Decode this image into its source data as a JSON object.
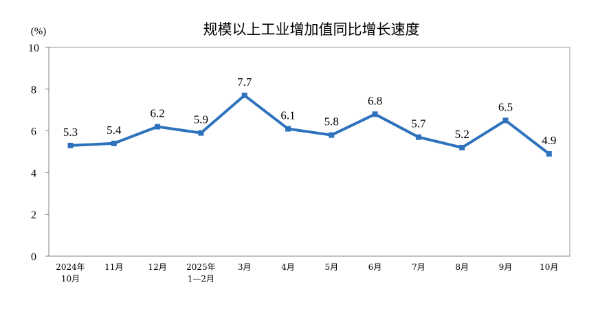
{
  "chart_data": {
    "type": "line",
    "title": "规模以上工业增加值同比增长速度",
    "unit_label": "(%)",
    "categories": [
      [
        "2024年",
        "10月"
      ],
      [
        "11月"
      ],
      [
        "12月"
      ],
      [
        "2025年",
        "1—2月"
      ],
      [
        "3月"
      ],
      [
        "4月"
      ],
      [
        "5月"
      ],
      [
        "6月"
      ],
      [
        "7月"
      ],
      [
        "8月"
      ],
      [
        "9月"
      ],
      [
        "10月"
      ]
    ],
    "values": [
      5.3,
      5.4,
      6.2,
      5.9,
      7.7,
      6.1,
      5.8,
      6.8,
      5.7,
      5.2,
      6.5,
      4.9
    ],
    "data_labels": [
      "5.3",
      "5.4",
      "6.2",
      "5.9",
      "7.7",
      "6.1",
      "5.8",
      "6.8",
      "5.7",
      "5.2",
      "6.5",
      "4.9"
    ],
    "ylim": [
      0,
      10
    ],
    "yticks": [
      0,
      2,
      4,
      6,
      8,
      10
    ],
    "grid": false,
    "legend": "none",
    "colors": {
      "line": "#2E72BD",
      "marker": "#2E72BD",
      "frame": "#999999",
      "axis": "#808080"
    }
  }
}
